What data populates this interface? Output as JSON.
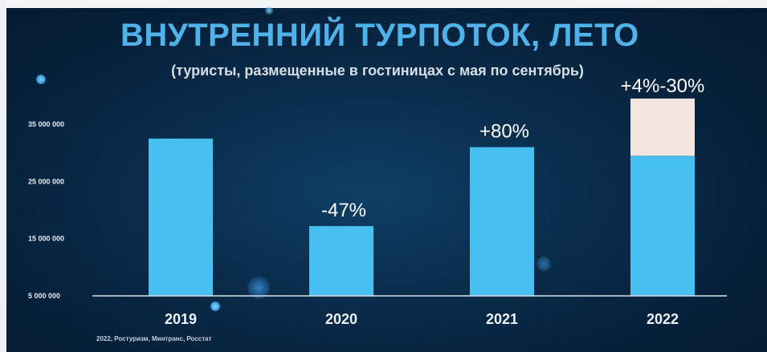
{
  "title": "ВНУТРЕННИЙ ТУРПОТОК, ЛЕТО",
  "subtitle": "(туристы, размещенные в гостиницах с мая по сентябрь)",
  "source": "2022, Ростуризм, Минтранс, Росстат",
  "colors": {
    "background": "#0a2d4c",
    "title": "#4fb3ea",
    "bar": "#47bff0",
    "bar_upper": "#f3e6de",
    "axis": "#d9e1e8",
    "text": "#ffffff"
  },
  "chart_data": {
    "type": "bar",
    "title": "ВНУТРЕННИЙ ТУРПОТОК, ЛЕТО",
    "subtitle": "(туристы, размещенные в гостиницах с мая по сентябрь)",
    "categories": [
      "2019",
      "2020",
      "2021",
      "2022"
    ],
    "series": [
      {
        "values": [
          32500000,
          17200000,
          31000000,
          29500000
        ]
      },
      {
        "values": [
          0,
          0,
          0,
          10000000
        ]
      }
    ],
    "data_labels": [
      "",
      "-47%",
      "+80%",
      "+4%-30%"
    ],
    "y_ticks": [
      {
        "value": 5000000,
        "label": "5 000 000"
      },
      {
        "value": 15000000,
        "label": "15 000 000"
      },
      {
        "value": 25000000,
        "label": "25 000 000"
      },
      {
        "value": 35000000,
        "label": "35 000 000"
      }
    ],
    "ylim": [
      5000000,
      40000000
    ],
    "xlabel": "",
    "ylabel": "",
    "grid": false,
    "legend": "none",
    "stacked": true
  }
}
